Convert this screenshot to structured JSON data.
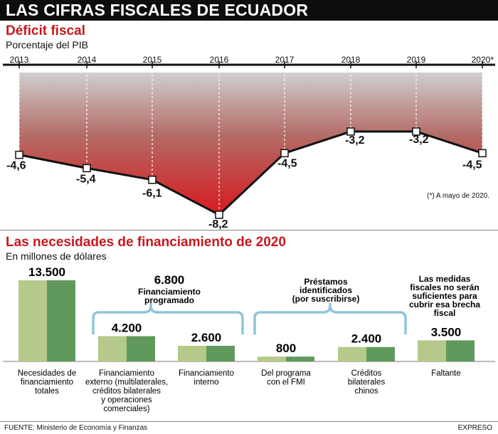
{
  "header": {
    "title": "LAS CIFRAS FISCALES DE ECUADOR"
  },
  "chart_data": [
    {
      "type": "line",
      "title": "Déficit fiscal",
      "subtitle": "Porcentaje del PIB",
      "x": [
        "2013",
        "2014",
        "2015",
        "2016",
        "2017",
        "2018",
        "2019",
        "2020*"
      ],
      "values": [
        -4.6,
        -5.4,
        -6.1,
        -8.2,
        -4.5,
        -3.2,
        -3.2,
        -4.5
      ],
      "value_labels": [
        "-4,6",
        "-5,4",
        "-6,1",
        "-8,2",
        "-4,5",
        "-3,2",
        "-3,2",
        "-4,5"
      ],
      "ylim": [
        -8.2,
        0
      ],
      "note": "(*) A mayo de 2020.",
      "colors": {
        "fill_top": "#cfcfcf",
        "fill_bottom": "#d71920",
        "line": "#111111"
      }
    },
    {
      "type": "bar",
      "title": "Las necesidades de financiamiento de 2020",
      "subtitle": "En millones de dólares",
      "categories": [
        "Necesidades de financiamiento totales",
        "Financiamiento externo (multilaterales, créditos bilaterales y operaciones comerciales)",
        "Financiamiento interno",
        "Del programa con el FMI",
        "Créditos bilaterales chinos",
        "Faltante"
      ],
      "category_lines": [
        [
          "Necesidades de",
          "financiamiento",
          "totales"
        ],
        [
          "Financiamiento",
          "externo (multilaterales,",
          "créditos bilaterales",
          "y operaciones",
          "comerciales)"
        ],
        [
          "Financiamiento",
          "interno"
        ],
        [
          "Del programa",
          "con el FMI"
        ],
        [
          "Créditos",
          "bilaterales",
          "chinos"
        ],
        [
          "Faltante"
        ]
      ],
      "values": [
        13500,
        4200,
        2600,
        800,
        2400,
        3500
      ],
      "value_labels": [
        "13.500",
        "4.200",
        "2.600",
        "800",
        "2.400",
        "3.500"
      ],
      "ylim": [
        0,
        13500
      ],
      "groups": [
        {
          "value_label": "6.800",
          "lines": [
            "Financiamiento",
            "programado"
          ]
        },
        {
          "lines": [
            "Préstamos",
            "identificados",
            "(por suscribirse)"
          ]
        }
      ],
      "faltante_note": [
        "Las medidas",
        "fiscales no serán",
        "suficientes para",
        "cubrir esa brecha",
        "fiscal"
      ],
      "colors": {
        "bar_left": "#b5c98a",
        "bar_right": "#5f9a5c",
        "bracket": "#8fc5d8"
      }
    }
  ],
  "footer": {
    "source": "FUENTE: Ministerio de Economía y Finanzas",
    "brand": "EXPRESO"
  }
}
